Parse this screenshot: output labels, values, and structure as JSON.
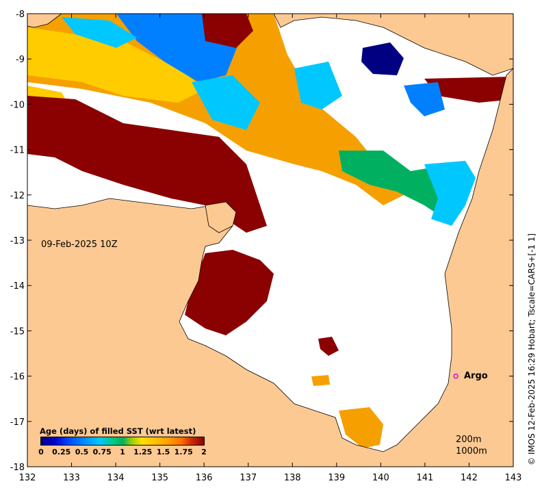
{
  "map": {
    "title": "",
    "date_label": "09-Feb-2025 10Z",
    "x_ticks": [
      "132",
      "133",
      "134",
      "135",
      "136",
      "137",
      "138",
      "139",
      "140",
      "141",
      "142",
      "143"
    ],
    "y_ticks": [
      "-8",
      "-9",
      "-10",
      "-11",
      "-12",
      "-13",
      "-14",
      "-15",
      "-16",
      "-17",
      "-18"
    ],
    "lon_range": [
      132,
      143
    ],
    "lat_range": [
      -18,
      -8
    ],
    "colors": {
      "land": "#fcc992",
      "no_data": "#ffffff",
      "old": "#8b0000",
      "orange": "#f5a000",
      "yellow": "#ffcc00",
      "cyan": "#00c8ff",
      "blue": "#0080ff",
      "green": "#00b060",
      "navy": "#000080"
    }
  },
  "colorbar": {
    "title": "Age (days) of filled SST (wrt latest)",
    "ticks": [
      "0",
      "0.25",
      "0.5",
      "0.75",
      "1",
      "1.25",
      "1.5",
      "1.75",
      "2"
    ],
    "range": [
      0,
      2
    ]
  },
  "markers": [
    {
      "label": "Argo",
      "lon": 141.7,
      "lat": -16.0,
      "color": "#e000e0"
    }
  ],
  "contours": {
    "line1": "200m",
    "line2": "1000m"
  },
  "credit": "© IMOS 12-Feb-2025 16:29 Hobart; Tscale=CARS+[-1 1]"
}
